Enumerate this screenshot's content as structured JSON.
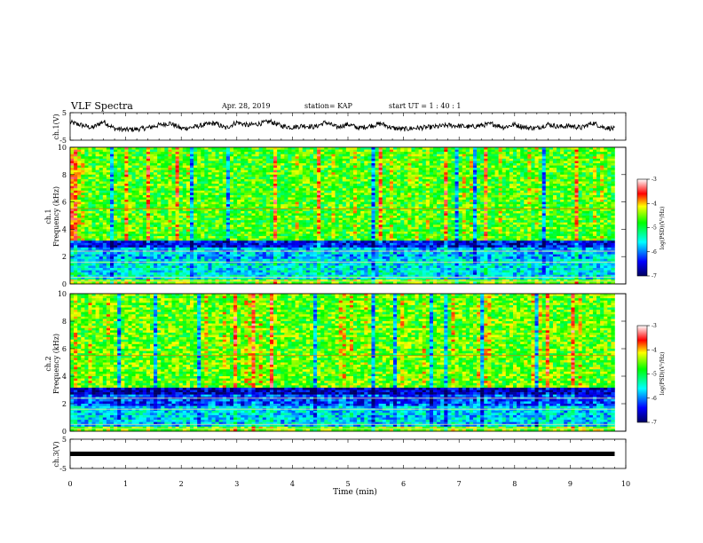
{
  "header": {
    "title": "VLF Spectra",
    "date": "Apr. 28, 2019",
    "station": "station= KAP",
    "start": "start  UT =   1 : 40 : 1"
  },
  "chart_data": [
    {
      "type": "line",
      "ylabel": "ch.1(V)",
      "ylim": [
        -5,
        5
      ],
      "yticks": [
        "5",
        "-5"
      ],
      "x": [
        0,
        0.2,
        0.4,
        0.6,
        0.8,
        1.0,
        1.2,
        1.4,
        1.6,
        1.8,
        2.0,
        2.2,
        2.4,
        2.6,
        2.8,
        3.0,
        3.2,
        3.4,
        3.6,
        3.8,
        4.0,
        4.2,
        4.4,
        4.6,
        4.8,
        5.0,
        5.2,
        5.4,
        5.6,
        5.8,
        6.0,
        6.2,
        6.4,
        6.6,
        6.8,
        7.0,
        7.2,
        7.4,
        7.6,
        7.8,
        8.0,
        8.2,
        8.4,
        8.6,
        8.8,
        9.0,
        9.2,
        9.4,
        9.6,
        9.8
      ],
      "values": [
        1.5,
        0.5,
        -0.5,
        1.8,
        -0.8,
        -1.2,
        -1.0,
        -0.5,
        0.5,
        1.2,
        -0.8,
        -0.3,
        0.5,
        1.2,
        -0.6,
        1.5,
        0.4,
        1.0,
        1.8,
        0.2,
        -0.3,
        0.3,
        -0.2,
        1.5,
        -0.3,
        0.8,
        -0.6,
        0.2,
        1.0,
        -0.6,
        -1.0,
        -0.6,
        -0.4,
        -0.1,
        0.4,
        0.2,
        -0.2,
        0.4,
        0.9,
        -0.3,
        0.7,
        -0.4,
        -0.6,
        0.8,
        -0.1,
        0.2,
        -0.5,
        1.3,
        -0.3,
        -0.9
      ]
    },
    {
      "type": "heatmap",
      "ylabel": "ch.1 Frequency (kHz)",
      "yticks": [
        "0",
        "2",
        "4",
        "6",
        "8",
        "10"
      ],
      "ylim": [
        0,
        10
      ],
      "colorbar": {
        "label": "log(PSD)(V²/Hz)",
        "ticks": [
          "-3",
          "-4",
          "-5",
          "-6",
          "-7"
        ],
        "range": [
          -7,
          -3
        ]
      },
      "bands": [
        {
          "from": 0,
          "to": 0.3,
          "level": -4.5
        },
        {
          "from": 0.3,
          "to": 1.8,
          "level": -5.6
        },
        {
          "from": 1.8,
          "to": 2.6,
          "level": -5.8
        },
        {
          "from": 2.6,
          "to": 3.2,
          "level": -6.5
        },
        {
          "from": 3.2,
          "to": 10,
          "level": -4.7
        }
      ]
    },
    {
      "type": "heatmap",
      "ylabel": "ch.2 Frequency (kHz)",
      "yticks": [
        "0",
        "2",
        "4",
        "6",
        "8",
        "10"
      ],
      "ylim": [
        0,
        10
      ],
      "colorbar": {
        "label": "log(PSD)(V²/Hz)",
        "ticks": [
          "-3",
          "-4",
          "-5",
          "-6",
          "-7"
        ],
        "range": [
          -7,
          -3
        ]
      },
      "bands": [
        {
          "from": 0,
          "to": 0.3,
          "level": -4.5
        },
        {
          "from": 0.3,
          "to": 1.8,
          "level": -5.7
        },
        {
          "from": 1.8,
          "to": 2.6,
          "level": -6.2
        },
        {
          "from": 2.6,
          "to": 3.2,
          "level": -6.7
        },
        {
          "from": 3.2,
          "to": 10,
          "level": -4.6
        }
      ]
    },
    {
      "type": "line",
      "ylabel": "ch.3(V)",
      "ylim": [
        -5,
        5
      ],
      "yticks": [
        "5",
        "-5"
      ],
      "x": [
        0,
        9.8
      ],
      "values": [
        0,
        0
      ]
    }
  ],
  "xaxis": {
    "label": "Time  (min)",
    "ticks": [
      "0",
      "1",
      "2",
      "3",
      "4",
      "5",
      "6",
      "7",
      "8",
      "9",
      "10"
    ],
    "range": [
      0,
      10
    ]
  }
}
